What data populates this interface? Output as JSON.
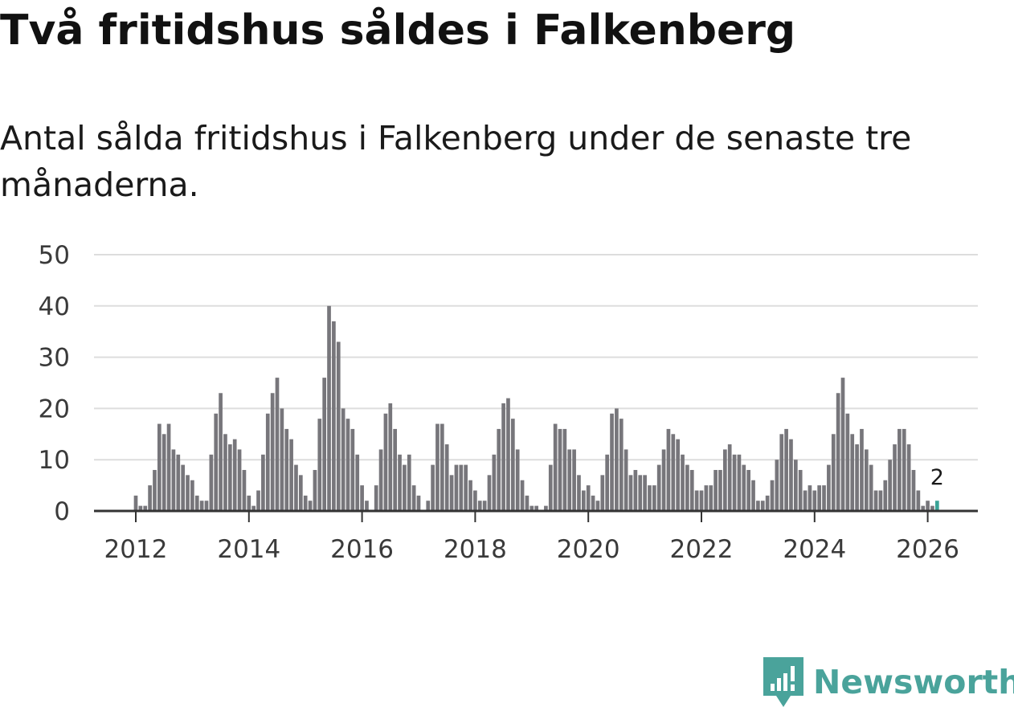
{
  "header": {
    "title": "Två fritidshus såldes i Falkenberg",
    "subtitle": "Antal sålda fritidshus i Falkenberg under de senaste tre månaderna."
  },
  "brand": {
    "name": "Newsworthy",
    "icon": "newsworthy-logo-icon",
    "color": "#4aa39b"
  },
  "colors": {
    "bar": "#77767b",
    "highlight": "#3aa396",
    "grid": "#dddddd",
    "axis": "#333333"
  },
  "chart_data": {
    "type": "bar",
    "title": "Två fritidshus såldes i Falkenberg",
    "subtitle": "Antal sålda fritidshus i Falkenberg under de senaste tre månaderna.",
    "xlabel": "",
    "ylabel": "",
    "ylim": [
      0,
      50
    ],
    "yticks": [
      "0",
      "10",
      "20",
      "30",
      "40",
      "50"
    ],
    "xticks": [
      "2012",
      "2014",
      "2016",
      "2018",
      "2020",
      "2022",
      "2024",
      "2026"
    ],
    "grid": true,
    "x_start": "2011-01",
    "x_end": "2026-03",
    "series": [
      {
        "values": [
          0,
          0,
          0,
          0,
          0,
          0,
          0,
          0,
          0,
          0,
          0,
          0,
          3,
          1,
          1,
          5,
          8,
          17,
          15,
          17,
          12,
          11,
          9,
          7,
          6,
          3,
          2,
          2,
          11,
          19,
          23,
          15,
          13,
          14,
          12,
          8,
          3,
          1,
          4,
          11,
          19,
          23,
          26,
          20,
          16,
          14,
          9,
          7,
          3,
          2,
          8,
          18,
          26,
          40,
          37,
          33,
          20,
          18,
          16,
          11,
          5,
          2,
          0,
          5,
          12,
          19,
          21,
          16,
          11,
          9,
          11,
          5,
          3,
          0,
          2,
          9,
          17,
          17,
          13,
          7,
          9,
          9,
          9,
          6,
          4,
          2,
          2,
          7,
          11,
          16,
          21,
          22,
          18,
          12,
          6,
          3,
          1,
          1,
          0,
          1,
          9,
          17,
          16,
          16,
          12,
          12,
          7,
          4,
          5,
          3,
          2,
          7,
          11,
          19,
          20,
          18,
          12,
          7,
          8,
          7,
          7,
          5,
          5,
          9,
          12,
          16,
          15,
          14,
          11,
          9,
          8,
          4,
          4,
          5,
          5,
          8,
          8,
          12,
          13,
          11,
          11,
          9,
          8,
          6,
          2,
          2,
          3,
          6,
          10,
          15,
          16,
          14,
          10,
          8,
          4,
          5,
          4,
          5,
          5,
          9,
          15,
          23,
          26,
          19,
          15,
          13,
          16,
          12,
          9,
          4,
          4,
          6,
          10,
          13,
          16,
          16,
          13,
          8,
          4,
          1,
          2,
          1,
          2
        ]
      }
    ],
    "highlight": {
      "label": "2",
      "value": 2
    }
  }
}
